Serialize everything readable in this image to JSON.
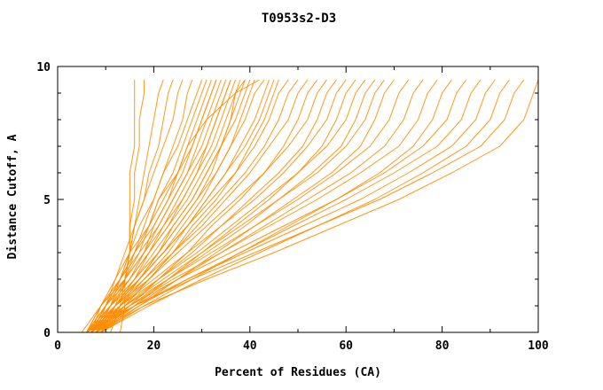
{
  "title": "T0953s2-D3",
  "colors": {
    "curve": "#ff8c00",
    "axis": "#000000",
    "background": "#ffffff"
  },
  "chart_data": {
    "type": "line",
    "title": "T0953s2-D3",
    "xlabel": "Percent of Residues (CA)",
    "ylabel": "Distance Cutoff, A",
    "xlim": [
      0,
      100
    ],
    "ylim": [
      0,
      10
    ],
    "x_major_ticks": [
      0,
      20,
      40,
      60,
      80,
      100
    ],
    "x_minor_step": 10,
    "y_major_ticks": [
      0,
      5,
      10
    ],
    "y_minor_step": 1,
    "grid": false,
    "legend": "none",
    "y_levels": [
      0,
      1,
      2,
      3,
      4,
      5,
      6,
      7,
      8,
      9,
      9.5
    ],
    "series": [
      [
        13,
        14,
        14,
        15,
        15,
        15,
        15,
        16,
        16,
        16,
        16
      ],
      [
        11,
        13,
        14,
        15,
        15,
        16,
        16,
        17,
        17,
        18,
        18
      ],
      [
        9,
        12,
        14,
        15,
        16,
        17,
        18,
        19,
        20,
        21,
        22
      ],
      [
        8,
        11,
        13,
        15,
        16,
        18,
        19,
        21,
        22,
        23,
        24
      ],
      [
        7,
        10,
        12,
        14,
        16,
        18,
        20,
        22,
        24,
        25,
        26
      ],
      [
        8,
        10,
        13,
        16,
        18,
        20,
        22,
        24,
        26,
        27,
        28
      ],
      [
        6,
        9,
        12,
        15,
        17,
        20,
        22,
        25,
        27,
        29,
        30
      ],
      [
        7,
        10,
        14,
        16,
        19,
        21,
        24,
        26,
        28,
        30,
        31
      ],
      [
        6,
        10,
        13,
        17,
        19,
        22,
        25,
        27,
        29,
        31,
        32
      ],
      [
        8,
        11,
        15,
        18,
        20,
        23,
        26,
        28,
        30,
        32,
        33
      ],
      [
        5,
        9,
        13,
        16,
        20,
        23,
        25,
        28,
        30,
        32,
        33
      ],
      [
        7,
        11,
        14,
        18,
        21,
        24,
        27,
        29,
        31,
        33,
        34
      ],
      [
        6,
        10,
        14,
        17,
        21,
        24,
        27,
        30,
        32,
        34,
        35
      ],
      [
        8,
        12,
        16,
        19,
        22,
        25,
        28,
        31,
        33,
        35,
        36
      ],
      [
        6,
        9,
        14,
        18,
        22,
        26,
        29,
        31,
        33,
        35,
        36
      ],
      [
        7,
        11,
        15,
        19,
        23,
        26,
        29,
        32,
        34,
        36,
        37
      ],
      [
        8,
        12,
        17,
        21,
        24,
        28,
        31,
        34,
        36,
        37,
        38
      ],
      [
        6,
        10,
        15,
        19,
        23,
        27,
        30,
        33,
        35,
        37,
        39
      ],
      [
        9,
        13,
        17,
        21,
        25,
        29,
        32,
        34,
        36,
        38,
        39
      ],
      [
        7,
        12,
        16,
        20,
        24,
        28,
        31,
        34,
        37,
        39,
        40
      ],
      [
        8,
        12,
        17,
        22,
        26,
        30,
        33,
        36,
        38,
        40,
        41
      ],
      [
        7,
        9,
        13,
        15,
        19,
        21,
        25,
        27,
        31,
        37,
        42
      ],
      [
        6,
        11,
        16,
        21,
        25,
        29,
        33,
        36,
        39,
        41,
        43
      ],
      [
        8,
        13,
        18,
        23,
        27,
        31,
        35,
        38,
        41,
        43,
        44
      ],
      [
        7,
        12,
        17,
        22,
        27,
        31,
        35,
        39,
        42,
        44,
        45
      ],
      [
        9,
        14,
        19,
        24,
        28,
        33,
        37,
        40,
        43,
        45,
        46
      ],
      [
        6,
        11,
        17,
        22,
        27,
        32,
        37,
        41,
        44,
        46,
        48
      ],
      [
        8,
        13,
        19,
        24,
        29,
        34,
        39,
        43,
        46,
        48,
        50
      ],
      [
        7,
        12,
        18,
        24,
        30,
        35,
        40,
        44,
        48,
        50,
        52
      ],
      [
        9,
        15,
        21,
        27,
        32,
        38,
        43,
        47,
        50,
        52,
        54
      ],
      [
        6,
        12,
        19,
        25,
        31,
        37,
        43,
        48,
        52,
        54,
        56
      ],
      [
        8,
        14,
        21,
        28,
        34,
        40,
        46,
        51,
        54,
        56,
        58
      ],
      [
        7,
        13,
        20,
        27,
        34,
        41,
        47,
        52,
        56,
        58,
        60
      ],
      [
        9,
        16,
        23,
        30,
        37,
        44,
        50,
        55,
        58,
        60,
        62
      ],
      [
        6,
        13,
        21,
        29,
        36,
        43,
        50,
        56,
        60,
        62,
        64
      ],
      [
        8,
        15,
        23,
        31,
        39,
        46,
        53,
        59,
        62,
        64,
        66
      ],
      [
        7,
        14,
        22,
        30,
        38,
        46,
        54,
        60,
        64,
        66,
        68
      ],
      [
        9,
        17,
        25,
        33,
        41,
        49,
        57,
        63,
        66,
        68,
        70
      ],
      [
        6,
        14,
        23,
        32,
        41,
        50,
        58,
        65,
        69,
        71,
        73
      ],
      [
        8,
        16,
        25,
        34,
        43,
        52,
        61,
        68,
        72,
        74,
        76
      ],
      [
        7,
        15,
        24,
        34,
        44,
        54,
        63,
        71,
        75,
        77,
        79
      ],
      [
        9,
        18,
        28,
        38,
        48,
        58,
        67,
        74,
        78,
        80,
        82
      ],
      [
        6,
        15,
        25,
        36,
        47,
        58,
        68,
        76,
        81,
        83,
        85
      ],
      [
        8,
        17,
        27,
        38,
        49,
        60,
        70,
        79,
        84,
        86,
        88
      ],
      [
        7,
        16,
        27,
        39,
        51,
        63,
        73,
        82,
        87,
        89,
        91
      ],
      [
        9,
        19,
        30,
        42,
        54,
        66,
        76,
        85,
        90,
        92,
        94
      ],
      [
        6,
        16,
        28,
        41,
        54,
        67,
        78,
        88,
        93,
        95,
        97
      ],
      [
        8,
        18,
        31,
        45,
        58,
        71,
        82,
        92,
        97,
        99,
        100
      ]
    ]
  }
}
